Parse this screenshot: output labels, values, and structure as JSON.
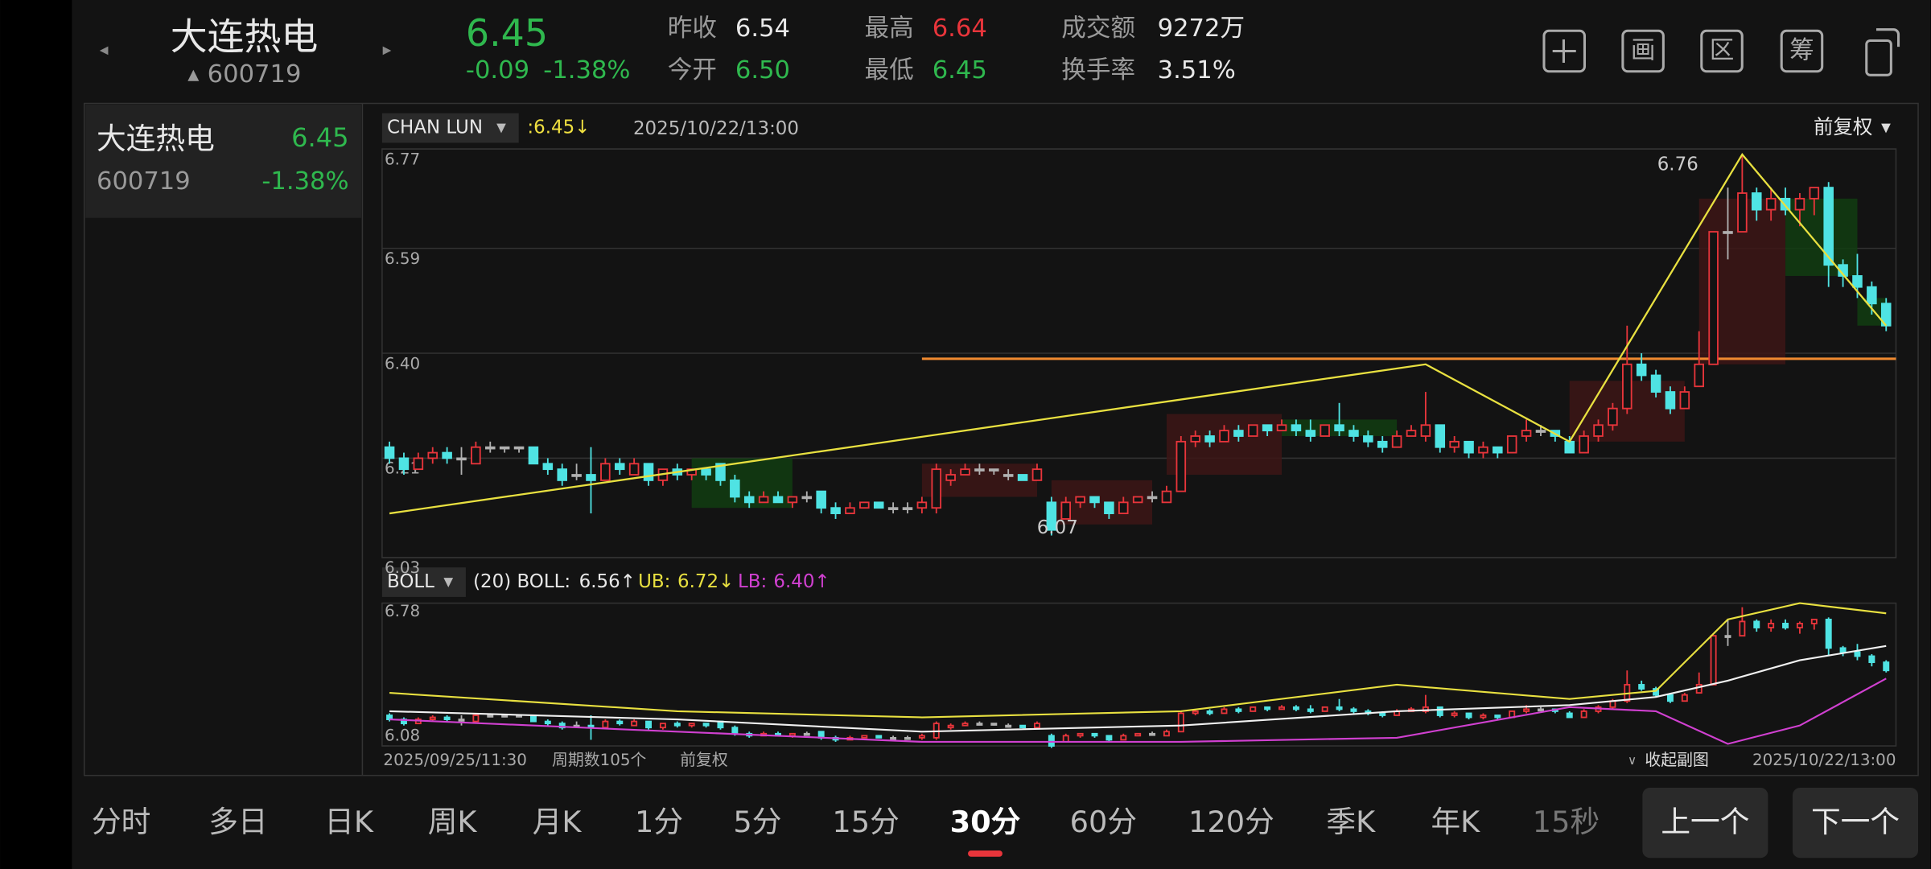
{
  "header": {
    "name": "大连热电",
    "code": "600719",
    "price": "6.45",
    "change": "-0.09",
    "change_pct": "-1.38%",
    "prev_close_label": "昨收",
    "prev_close": "6.54",
    "open_label": "今开",
    "open": "6.50",
    "high_label": "最高",
    "high": "6.64",
    "low_label": "最低",
    "low": "6.45",
    "amount_label": "成交额",
    "amount": "9272万",
    "turnover_label": "换手率",
    "turnover": "3.51%",
    "toolbar": [
      "画",
      "区",
      "筹"
    ]
  },
  "watchlist": [
    {
      "name": "大连热电",
      "price": "6.45",
      "code": "600719",
      "change_pct": "-1.38%"
    }
  ],
  "chart": {
    "indicator": "CHAN LUN",
    "indicator_value": ":6.45↓",
    "time": "2025/10/22/13:00",
    "adjust": "前复权",
    "ylim": [
      6.03,
      6.77
    ],
    "yticks": [
      6.77,
      6.59,
      {
        "value": 6.4,
        "label": "6.40"
      },
      6.21,
      6.03
    ],
    "up_color": "#e8353b",
    "down_color": "#4fe3e3",
    "flat_color": "#b0b0b0",
    "peak_label": "6.76",
    "trough_label": "6.07",
    "candles": [
      [
        6.23,
        6.21,
        6.24,
        6.2
      ],
      [
        6.21,
        6.19,
        6.22,
        6.18
      ],
      [
        6.19,
        6.21,
        6.22,
        6.19
      ],
      [
        6.21,
        6.22,
        6.23,
        6.2
      ],
      [
        6.22,
        6.21,
        6.23,
        6.2
      ],
      [
        6.21,
        6.21,
        6.23,
        6.18
      ],
      [
        6.2,
        6.23,
        6.24,
        6.2
      ],
      [
        6.23,
        6.23,
        6.24,
        6.22
      ],
      [
        6.23,
        6.23,
        6.23,
        6.22
      ],
      [
        6.23,
        6.23,
        6.23,
        6.22
      ],
      [
        6.23,
        6.2,
        6.23,
        6.2
      ],
      [
        6.2,
        6.19,
        6.21,
        6.18
      ],
      [
        6.19,
        6.17,
        6.2,
        6.16
      ],
      [
        6.18,
        6.18,
        6.2,
        6.17
      ],
      [
        6.18,
        6.17,
        6.23,
        6.11
      ],
      [
        6.17,
        6.2,
        6.21,
        6.17
      ],
      [
        6.2,
        6.19,
        6.21,
        6.18
      ],
      [
        6.18,
        6.2,
        6.21,
        6.18
      ],
      [
        6.2,
        6.17,
        6.2,
        6.16
      ],
      [
        6.17,
        6.19,
        6.19,
        6.16
      ],
      [
        6.19,
        6.18,
        6.2,
        6.17
      ],
      [
        6.18,
        6.19,
        6.19,
        6.17
      ],
      [
        6.19,
        6.18,
        6.19,
        6.17
      ],
      [
        6.2,
        6.17,
        6.2,
        6.16
      ],
      [
        6.17,
        6.14,
        6.18,
        6.13
      ],
      [
        6.14,
        6.13,
        6.15,
        6.12
      ],
      [
        6.13,
        6.14,
        6.15,
        6.13
      ],
      [
        6.14,
        6.13,
        6.15,
        6.13
      ],
      [
        6.13,
        6.14,
        6.14,
        6.12
      ],
      [
        6.14,
        6.14,
        6.15,
        6.13
      ],
      [
        6.15,
        6.12,
        6.15,
        6.11
      ],
      [
        6.12,
        6.11,
        6.13,
        6.1
      ],
      [
        6.11,
        6.12,
        6.13,
        6.11
      ],
      [
        6.12,
        6.13,
        6.13,
        6.12
      ],
      [
        6.13,
        6.12,
        6.13,
        6.12
      ],
      [
        6.12,
        6.12,
        6.13,
        6.11
      ],
      [
        6.12,
        6.12,
        6.13,
        6.11
      ],
      [
        6.12,
        6.13,
        6.14,
        6.11
      ],
      [
        6.12,
        6.19,
        6.2,
        6.11
      ],
      [
        6.17,
        6.18,
        6.19,
        6.16
      ],
      [
        6.18,
        6.19,
        6.2,
        6.18
      ],
      [
        6.19,
        6.19,
        6.2,
        6.18
      ],
      [
        6.19,
        6.19,
        6.19,
        6.18
      ],
      [
        6.18,
        6.18,
        6.19,
        6.17
      ],
      [
        6.18,
        6.17,
        6.18,
        6.17
      ],
      [
        6.17,
        6.19,
        6.2,
        6.17
      ],
      [
        6.13,
        6.08,
        6.14,
        6.07
      ],
      [
        6.1,
        6.13,
        6.14,
        6.1
      ],
      [
        6.13,
        6.14,
        6.14,
        6.12
      ],
      [
        6.14,
        6.13,
        6.14,
        6.12
      ],
      [
        6.13,
        6.11,
        6.13,
        6.1
      ],
      [
        6.11,
        6.13,
        6.14,
        6.11
      ],
      [
        6.13,
        6.14,
        6.14,
        6.13
      ],
      [
        6.14,
        6.14,
        6.15,
        6.13
      ],
      [
        6.13,
        6.15,
        6.16,
        6.13
      ],
      [
        6.15,
        6.24,
        6.25,
        6.15
      ],
      [
        6.24,
        6.25,
        6.26,
        6.23
      ],
      [
        6.25,
        6.24,
        6.26,
        6.23
      ],
      [
        6.24,
        6.26,
        6.27,
        6.24
      ],
      [
        6.26,
        6.25,
        6.27,
        6.24
      ],
      [
        6.25,
        6.27,
        6.27,
        6.25
      ],
      [
        6.27,
        6.26,
        6.27,
        6.25
      ],
      [
        6.26,
        6.27,
        6.28,
        6.26
      ],
      [
        6.27,
        6.26,
        6.28,
        6.25
      ],
      [
        6.26,
        6.25,
        6.28,
        6.24
      ],
      [
        6.25,
        6.27,
        6.27,
        6.25
      ],
      [
        6.27,
        6.26,
        6.31,
        6.25
      ],
      [
        6.26,
        6.25,
        6.27,
        6.24
      ],
      [
        6.25,
        6.24,
        6.26,
        6.23
      ],
      [
        6.24,
        6.23,
        6.25,
        6.22
      ],
      [
        6.23,
        6.25,
        6.26,
        6.23
      ],
      [
        6.25,
        6.26,
        6.27,
        6.25
      ],
      [
        6.25,
        6.27,
        6.33,
        6.24
      ],
      [
        6.27,
        6.23,
        6.27,
        6.22
      ],
      [
        6.23,
        6.24,
        6.25,
        6.22
      ],
      [
        6.24,
        6.22,
        6.24,
        6.21
      ],
      [
        6.22,
        6.23,
        6.24,
        6.21
      ],
      [
        6.23,
        6.22,
        6.23,
        6.21
      ],
      [
        6.22,
        6.25,
        6.25,
        6.22
      ],
      [
        6.25,
        6.26,
        6.28,
        6.24
      ],
      [
        6.26,
        6.26,
        6.27,
        6.25
      ],
      [
        6.26,
        6.25,
        6.26,
        6.24
      ],
      [
        6.24,
        6.22,
        6.25,
        6.22
      ],
      [
        6.22,
        6.25,
        6.26,
        6.22
      ],
      [
        6.25,
        6.27,
        6.28,
        6.24
      ],
      [
        6.27,
        6.3,
        6.31,
        6.26
      ],
      [
        6.3,
        6.38,
        6.45,
        6.29
      ],
      [
        6.38,
        6.36,
        6.4,
        6.35
      ],
      [
        6.36,
        6.33,
        6.37,
        6.32
      ],
      [
        6.33,
        6.3,
        6.34,
        6.29
      ],
      [
        6.3,
        6.33,
        6.34,
        6.3
      ],
      [
        6.34,
        6.38,
        6.44,
        6.34
      ],
      [
        6.38,
        6.62,
        6.62,
        6.38
      ],
      [
        6.62,
        6.62,
        6.7,
        6.57
      ],
      [
        6.62,
        6.69,
        6.76,
        6.62
      ],
      [
        6.69,
        6.66,
        6.7,
        6.64
      ],
      [
        6.66,
        6.68,
        6.7,
        6.64
      ],
      [
        6.68,
        6.66,
        6.7,
        6.65
      ],
      [
        6.66,
        6.68,
        6.69,
        6.63
      ],
      [
        6.68,
        6.7,
        6.7,
        6.65
      ],
      [
        6.7,
        6.56,
        6.71,
        6.52
      ],
      [
        6.56,
        6.54,
        6.57,
        6.52
      ],
      [
        6.54,
        6.52,
        6.58,
        6.5
      ],
      [
        6.52,
        6.49,
        6.53,
        6.47
      ],
      [
        6.49,
        6.45,
        6.5,
        6.44
      ]
    ],
    "zones": [
      {
        "from": 21,
        "to": 28,
        "low": 6.12,
        "high": 6.21,
        "color": "#123d12"
      },
      {
        "from": 37,
        "to": 45,
        "low": 6.14,
        "high": 6.2,
        "color": "#3d1616"
      },
      {
        "from": 46,
        "to": 53,
        "low": 6.09,
        "high": 6.17,
        "color": "#3d1616"
      },
      {
        "from": 54,
        "to": 62,
        "low": 6.18,
        "high": 6.29,
        "color": "#3d1616"
      },
      {
        "from": 62,
        "to": 70,
        "low": 6.25,
        "high": 6.28,
        "color": "#123d12"
      },
      {
        "from": 82,
        "to": 90,
        "low": 6.24,
        "high": 6.35,
        "color": "#3d1616"
      },
      {
        "from": 91,
        "to": 97,
        "low": 6.38,
        "high": 6.68,
        "color": "#3d1616"
      },
      {
        "from": 97,
        "to": 102,
        "low": 6.54,
        "high": 6.68,
        "color": "#123d12"
      },
      {
        "from": 102,
        "to": 104,
        "low": 6.45,
        "high": 6.5,
        "color": "#123d12"
      }
    ],
    "strokes": {
      "x": [
        0,
        72,
        82,
        94,
        104
      ],
      "y": [
        6.11,
        6.38,
        6.24,
        6.76,
        6.45
      ],
      "color": "#e8e040"
    },
    "hline": {
      "value": 6.39,
      "from": 37,
      "color": "#f08a30"
    }
  },
  "sub": {
    "indicator": "BOLL",
    "params": "(20) BOLL:",
    "boll": "6.56↑",
    "ub_label": "UB:",
    "ub": "6.72↓",
    "lb_label": "LB:",
    "lb": "6.40↑",
    "ylim": [
      6.08,
      6.78
    ],
    "yticks": [
      6.78,
      6.08
    ],
    "bands": {
      "x": [
        0,
        20,
        37,
        55,
        70,
        82,
        88,
        93,
        98,
        104
      ],
      "ub": [
        6.34,
        6.25,
        6.22,
        6.25,
        6.38,
        6.31,
        6.35,
        6.7,
        6.78,
        6.73
      ],
      "mid": [
        6.25,
        6.21,
        6.15,
        6.18,
        6.25,
        6.28,
        6.32,
        6.4,
        6.5,
        6.57
      ],
      "lb": [
        6.21,
        6.15,
        6.1,
        6.1,
        6.12,
        6.27,
        6.25,
        6.09,
        6.18,
        6.41
      ],
      "ub_color": "#e8e040",
      "mid_color": "#f0f0f0",
      "lb_color": "#d040d0"
    }
  },
  "footer": {
    "start": "2025/09/25/11:30",
    "periods": "周期数105个",
    "adjust": "前复权",
    "collapse": "收起副图",
    "end": "2025/10/22/13:00"
  },
  "tabs": {
    "items": [
      "分时",
      "多日",
      "日K",
      "周K",
      "月K",
      "1分",
      "5分",
      "15分",
      "30分",
      "60分",
      "120分",
      "季K",
      "年K",
      "15秒"
    ],
    "active": 8
  },
  "buttons": [
    "上一个",
    "下一个"
  ]
}
